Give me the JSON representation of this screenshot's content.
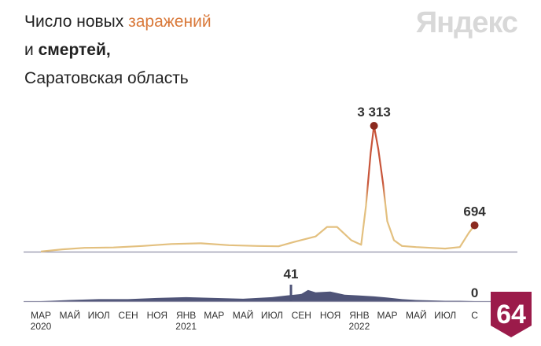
{
  "header": {
    "title_prefix": "Число новых ",
    "title_accent": "заражений",
    "title_line2_prefix": "и ",
    "title_line2_bold": "смертей",
    "title_line2_suffix": ",",
    "title_line3": "Саратовская область",
    "brand": "Яндекс"
  },
  "badge": {
    "label": "64",
    "color": "#9b1b4a"
  },
  "colors": {
    "cases_line": "#e3c07f",
    "cases_peak": "#c8553a",
    "peak_dot": "#8b2a1f",
    "deaths_fill": "#4f5478",
    "axis": "#9090a8"
  },
  "chart_data": [
    {
      "type": "line",
      "title": "Число новых заражений",
      "x_range": [
        "2020-03-01",
        "2022-09-15"
      ],
      "y_range": [
        0,
        3313
      ],
      "x": [
        "2020-03-01",
        "2020-04-15",
        "2020-06-01",
        "2020-08-01",
        "2020-10-01",
        "2020-12-01",
        "2021-02-01",
        "2021-04-01",
        "2021-06-01",
        "2021-07-15",
        "2021-08-15",
        "2021-10-01",
        "2021-10-25",
        "2021-11-15",
        "2021-12-15",
        "2022-01-05",
        "2022-01-15",
        "2022-01-25",
        "2022-02-01",
        "2022-02-10",
        "2022-02-20",
        "2022-03-01",
        "2022-03-15",
        "2022-04-01",
        "2022-05-01",
        "2022-06-01",
        "2022-07-01",
        "2022-08-01",
        "2022-08-20",
        "2022-09-01"
      ],
      "y": [
        5,
        60,
        100,
        110,
        150,
        200,
        220,
        170,
        150,
        140,
        250,
        400,
        650,
        650,
        300,
        180,
        1200,
        2600,
        3313,
        2700,
        1800,
        800,
        300,
        150,
        120,
        100,
        80,
        120,
        500,
        694
      ],
      "annotations": [
        {
          "label": "3 313",
          "x": "2022-02-01",
          "y": 3313
        },
        {
          "label": "694",
          "x": "2022-09-01",
          "y": 694
        }
      ]
    },
    {
      "type": "area",
      "title": "Число смертей",
      "x_range": [
        "2020-03-01",
        "2022-09-15"
      ],
      "y_range": [
        0,
        41
      ],
      "x": [
        "2020-03-01",
        "2020-05-01",
        "2020-07-01",
        "2020-09-01",
        "2020-11-01",
        "2021-01-01",
        "2021-03-01",
        "2021-05-01",
        "2021-07-01",
        "2021-08-01",
        "2021-09-01",
        "2021-09-15",
        "2021-10-01",
        "2021-11-01",
        "2021-12-01",
        "2022-01-01",
        "2022-02-01",
        "2022-03-01",
        "2022-04-01",
        "2022-05-01",
        "2022-06-01",
        "2022-07-01",
        "2022-08-01",
        "2022-09-01"
      ],
      "y": [
        0,
        3,
        5,
        5,
        8,
        10,
        8,
        6,
        10,
        14,
        18,
        28,
        22,
        24,
        16,
        14,
        12,
        9,
        5,
        3,
        2,
        1,
        1,
        0
      ],
      "annotations": [
        {
          "label": "41",
          "x": "2021-08-10",
          "y": 41
        },
        {
          "label": "0",
          "x": "2022-09-01",
          "y": 0
        }
      ]
    }
  ],
  "x_axis": {
    "ticks": [
      {
        "date": "2020-03-01",
        "label": "МАР",
        "year": "2020"
      },
      {
        "date": "2020-05-01",
        "label": "МАЙ"
      },
      {
        "date": "2020-07-01",
        "label": "ИЮЛ"
      },
      {
        "date": "2020-09-01",
        "label": "СЕН"
      },
      {
        "date": "2020-11-01",
        "label": "НОЯ"
      },
      {
        "date": "2021-01-01",
        "label": "ЯНВ",
        "year": "2021"
      },
      {
        "date": "2021-03-01",
        "label": "МАР"
      },
      {
        "date": "2021-05-01",
        "label": "МАЙ"
      },
      {
        "date": "2021-07-01",
        "label": "ИЮЛ"
      },
      {
        "date": "2021-09-01",
        "label": "СЕН"
      },
      {
        "date": "2021-11-01",
        "label": "НОЯ"
      },
      {
        "date": "2022-01-01",
        "label": "ЯНВ",
        "year": "2022"
      },
      {
        "date": "2022-03-01",
        "label": "МАР"
      },
      {
        "date": "2022-05-01",
        "label": "МАЙ"
      },
      {
        "date": "2022-07-01",
        "label": "ИЮЛ"
      },
      {
        "date": "2022-09-01",
        "label": "С"
      }
    ]
  }
}
